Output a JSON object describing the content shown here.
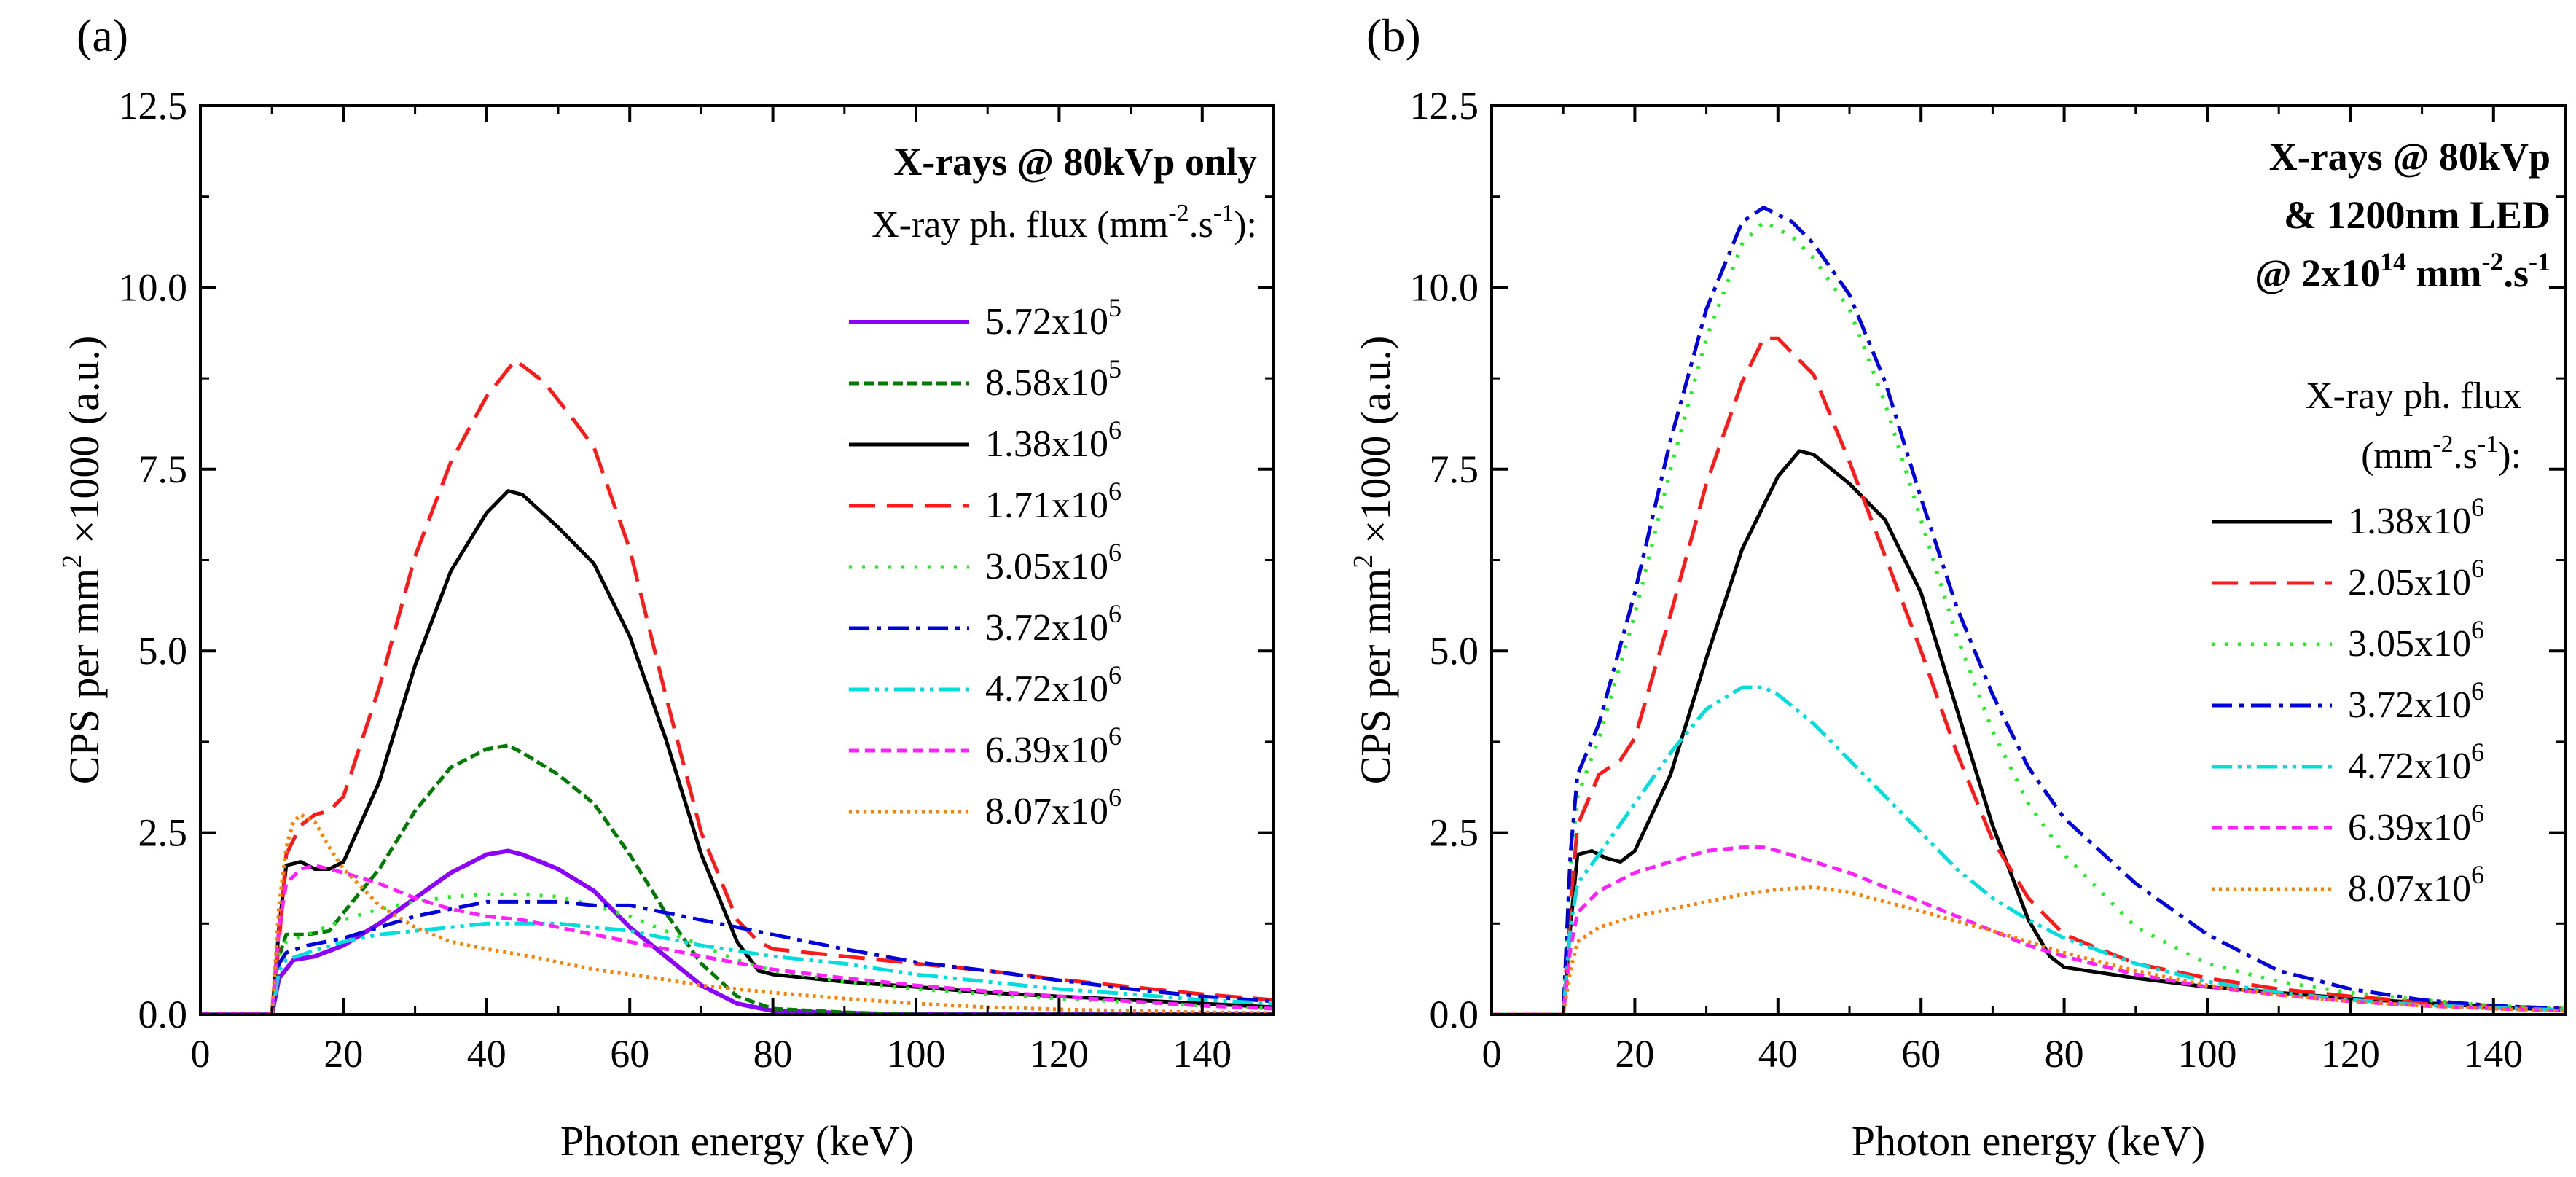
{
  "chart_data": [
    {
      "type": "line",
      "panel_label": "(a)",
      "xlabel": "Photon energy (keV)",
      "ylabel": "CPS per mm",
      "ylabel_sup": "2",
      "ylabel_tail": " ×1000 (a.u.)",
      "xlim": [
        0,
        150
      ],
      "ylim": [
        0,
        12.5
      ],
      "xticks": [
        "0",
        "20",
        "40",
        "60",
        "80",
        "100",
        "120",
        "140"
      ],
      "yticks": [
        "0.0",
        "2.5",
        "5.0",
        "7.5",
        "10.0",
        "12.5"
      ],
      "xtick_values": [
        0,
        20,
        40,
        60,
        80,
        100,
        120,
        140
      ],
      "ytick_values": [
        0,
        2.5,
        5.0,
        7.5,
        10.0,
        12.5
      ],
      "legend": {
        "title_lines": [
          "X-rays @ 80kVp only"
        ],
        "subtitle": "X-ray ph. flux (mm",
        "subtitle_sup": "-2",
        "subtitle_mid": ".s",
        "subtitle_sup2": "-1",
        "subtitle_tail": "):"
      },
      "series": [
        {
          "mant": "5.72x10",
          "exp": "5",
          "color": "#8B00FF",
          "dash": "solid",
          "width": 6,
          "x": [
            0,
            10,
            11,
            13,
            16,
            20,
            25,
            30,
            35,
            40,
            43,
            45,
            50,
            55,
            60,
            65,
            70,
            75,
            80,
            90,
            100,
            150
          ],
          "y": [
            0,
            0,
            0.5,
            0.75,
            0.8,
            0.95,
            1.25,
            1.6,
            1.95,
            2.2,
            2.25,
            2.2,
            2.0,
            1.7,
            1.2,
            0.8,
            0.4,
            0.15,
            0.05,
            0.02,
            0,
            0
          ]
        },
        {
          "mant": "8.58x10",
          "exp": "5",
          "color": "#007A00",
          "dash": "14,6",
          "width": 5,
          "x": [
            0,
            10,
            11,
            12,
            15,
            18,
            20,
            25,
            30,
            35,
            40,
            43,
            45,
            50,
            55,
            60,
            65,
            70,
            75,
            80,
            90,
            100,
            150
          ],
          "y": [
            0,
            0,
            0.8,
            1.1,
            1.1,
            1.15,
            1.4,
            2.0,
            2.8,
            3.4,
            3.65,
            3.7,
            3.6,
            3.3,
            2.9,
            2.2,
            1.4,
            0.7,
            0.25,
            0.08,
            0.03,
            0,
            0
          ]
        },
        {
          "mant": "1.38x10",
          "exp": "6",
          "color": "#000000",
          "dash": "solid",
          "width": 5,
          "x": [
            0,
            10,
            11,
            12,
            14,
            16,
            18,
            20,
            25,
            30,
            35,
            40,
            43,
            45,
            50,
            55,
            60,
            65,
            70,
            75,
            78,
            80,
            90,
            100,
            110,
            120,
            130,
            140,
            150
          ],
          "y": [
            0,
            0,
            1.2,
            2.05,
            2.1,
            2.0,
            2.0,
            2.1,
            3.2,
            4.8,
            6.1,
            6.9,
            7.2,
            7.15,
            6.7,
            6.2,
            5.2,
            3.8,
            2.2,
            1.0,
            0.6,
            0.55,
            0.45,
            0.38,
            0.3,
            0.25,
            0.2,
            0.15,
            0.1
          ]
        },
        {
          "mant": "1.71x10",
          "exp": "6",
          "color": "#FF1A1A",
          "dash": "36,16",
          "width": 5,
          "x": [
            0,
            10,
            11,
            12,
            14,
            16,
            18,
            20,
            25,
            30,
            35,
            40,
            44,
            48,
            52,
            55,
            60,
            65,
            70,
            75,
            78,
            80,
            90,
            100,
            110,
            120,
            130,
            140,
            150
          ],
          "y": [
            0,
            0,
            1.0,
            2.2,
            2.6,
            2.75,
            2.8,
            3.0,
            4.5,
            6.3,
            7.6,
            8.5,
            9.0,
            8.7,
            8.2,
            7.8,
            6.4,
            4.4,
            2.5,
            1.3,
            1.0,
            0.9,
            0.8,
            0.7,
            0.6,
            0.48,
            0.38,
            0.28,
            0.2
          ]
        },
        {
          "mant": "3.05x10",
          "exp": "6",
          "color": "#22EE22",
          "dash": "4,14",
          "width": 5,
          "x": [
            0,
            10,
            11,
            12,
            15,
            20,
            25,
            30,
            35,
            40,
            45,
            50,
            55,
            60,
            65,
            70,
            75,
            80,
            90,
            100,
            110,
            120,
            130,
            140,
            150
          ],
          "y": [
            0,
            0,
            0.8,
            1.0,
            1.1,
            1.3,
            1.45,
            1.55,
            1.62,
            1.65,
            1.65,
            1.62,
            1.5,
            1.35,
            1.15,
            0.95,
            0.75,
            0.6,
            0.45,
            0.35,
            0.28,
            0.22,
            0.17,
            0.12,
            0.08
          ]
        },
        {
          "mant": "3.72x10",
          "exp": "6",
          "color": "#0000DD",
          "dash": "28,10,6,10",
          "width": 5,
          "x": [
            0,
            10,
            11,
            12,
            15,
            20,
            25,
            30,
            35,
            40,
            45,
            50,
            55,
            60,
            65,
            70,
            80,
            90,
            100,
            110,
            120,
            130,
            140,
            150
          ],
          "y": [
            0,
            0,
            0.7,
            0.85,
            0.95,
            1.05,
            1.2,
            1.35,
            1.45,
            1.55,
            1.55,
            1.55,
            1.5,
            1.5,
            1.4,
            1.3,
            1.1,
            0.9,
            0.72,
            0.6,
            0.47,
            0.35,
            0.25,
            0.18
          ]
        },
        {
          "mant": "4.72x10",
          "exp": "6",
          "color": "#00DDDD",
          "dash": "28,8,5,8,5,8",
          "width": 5,
          "x": [
            0,
            10,
            11,
            12,
            15,
            20,
            25,
            30,
            35,
            40,
            45,
            50,
            55,
            60,
            65,
            70,
            80,
            90,
            100,
            110,
            120,
            130,
            140,
            150
          ],
          "y": [
            0,
            0,
            0.6,
            0.75,
            0.85,
            1.0,
            1.1,
            1.15,
            1.2,
            1.25,
            1.25,
            1.25,
            1.2,
            1.15,
            1.05,
            0.95,
            0.8,
            0.7,
            0.55,
            0.45,
            0.35,
            0.28,
            0.2,
            0.15
          ]
        },
        {
          "mant": "6.39x10",
          "exp": "6",
          "color": "#FF22FF",
          "dash": "14,8",
          "width": 5,
          "x": [
            0,
            10,
            11,
            12,
            14,
            16,
            18,
            20,
            25,
            30,
            35,
            40,
            45,
            50,
            55,
            60,
            65,
            70,
            80,
            90,
            100,
            110,
            120,
            130,
            140,
            150
          ],
          "y": [
            0,
            0,
            1.2,
            1.8,
            2.0,
            2.05,
            2.0,
            1.95,
            1.8,
            1.6,
            1.45,
            1.35,
            1.3,
            1.2,
            1.1,
            1.0,
            0.9,
            0.8,
            0.62,
            0.5,
            0.4,
            0.32,
            0.25,
            0.18,
            0.12,
            0.08
          ]
        },
        {
          "mant": "8.07x10",
          "exp": "6",
          "color": "#FF7F00",
          "dash": "4,6",
          "width": 5,
          "x": [
            0,
            10,
            11,
            12,
            13,
            14,
            16,
            18,
            20,
            25,
            30,
            35,
            40,
            45,
            50,
            55,
            60,
            65,
            70,
            80,
            90,
            100,
            110,
            120,
            130,
            140,
            150
          ],
          "y": [
            0,
            0,
            1.5,
            2.3,
            2.65,
            2.75,
            2.65,
            2.3,
            2.0,
            1.5,
            1.2,
            1.0,
            0.9,
            0.82,
            0.72,
            0.62,
            0.55,
            0.48,
            0.4,
            0.3,
            0.22,
            0.15,
            0.1,
            0.07,
            0.05,
            0.03,
            0.02
          ]
        }
      ]
    },
    {
      "type": "line",
      "panel_label": "(b)",
      "xlabel": "Photon energy (keV)",
      "ylabel": "CPS per mm",
      "ylabel_sup": "2",
      "ylabel_tail": " ×1000 (a.u.)",
      "xlim": [
        0,
        150
      ],
      "ylim": [
        0,
        12.5
      ],
      "xticks": [
        "0",
        "20",
        "40",
        "60",
        "80",
        "100",
        "120",
        "140"
      ],
      "yticks": [
        "0.0",
        "2.5",
        "5.0",
        "7.5",
        "10.0",
        "12.5"
      ],
      "xtick_values": [
        0,
        20,
        40,
        60,
        80,
        100,
        120,
        140
      ],
      "ytick_values": [
        0,
        2.5,
        5.0,
        7.5,
        10.0,
        12.5
      ],
      "legend": {
        "title_lines": [
          "X-rays @ 80kVp",
          "& 1200nm LED"
        ],
        "title_line3": "@ 2x10",
        "title_line3_sup": "14",
        "title_line3_mid": " mm",
        "title_line3_sup2": "-2",
        "title_line3_mid2": ".s",
        "title_line3_sup3": "-1",
        "subtitle_lines": [
          "X-ray ph. flux"
        ],
        "subtitle2": "(mm",
        "subtitle2_sup": "-2",
        "subtitle2_mid": ".s",
        "subtitle2_sup2": "-1",
        "subtitle2_tail": "):"
      },
      "series": [
        {
          "mant": "1.38x10",
          "exp": "6",
          "color": "#000000",
          "dash": "solid",
          "width": 5,
          "x": [
            0,
            10,
            11,
            12,
            14,
            16,
            18,
            20,
            25,
            30,
            35,
            40,
            43,
            45,
            50,
            55,
            60,
            65,
            70,
            75,
            78,
            80,
            90,
            100,
            110,
            120,
            130,
            140,
            150
          ],
          "y": [
            0,
            0,
            1.2,
            2.2,
            2.25,
            2.15,
            2.1,
            2.25,
            3.3,
            4.9,
            6.4,
            7.4,
            7.75,
            7.7,
            7.3,
            6.8,
            5.8,
            4.2,
            2.6,
            1.3,
            0.8,
            0.65,
            0.5,
            0.38,
            0.3,
            0.22,
            0.16,
            0.1,
            0.06
          ]
        },
        {
          "mant": "2.05x10",
          "exp": "6",
          "color": "#FF1A1A",
          "dash": "36,16",
          "width": 5,
          "x": [
            0,
            10,
            11,
            12,
            15,
            18,
            20,
            25,
            30,
            35,
            38,
            40,
            42,
            45,
            50,
            55,
            60,
            65,
            70,
            75,
            80,
            90,
            100,
            110,
            120,
            130,
            140,
            150
          ],
          "y": [
            0,
            0,
            1.5,
            2.6,
            3.3,
            3.5,
            3.8,
            5.5,
            7.3,
            8.7,
            9.3,
            9.3,
            9.1,
            8.8,
            7.6,
            6.3,
            5.0,
            3.6,
            2.4,
            1.6,
            1.1,
            0.7,
            0.5,
            0.35,
            0.25,
            0.17,
            0.12,
            0.08
          ]
        },
        {
          "mant": "3.05x10",
          "exp": "6",
          "color": "#22EE22",
          "dash": "4,14",
          "width": 5,
          "x": [
            0,
            10,
            11,
            12,
            15,
            20,
            25,
            30,
            35,
            38,
            40,
            42,
            45,
            50,
            55,
            60,
            65,
            70,
            75,
            80,
            90,
            100,
            110,
            120,
            130,
            140,
            150
          ],
          "y": [
            0,
            0,
            2.0,
            3.0,
            3.8,
            5.5,
            7.5,
            9.3,
            10.6,
            10.9,
            10.8,
            10.7,
            10.4,
            9.7,
            8.4,
            6.8,
            5.2,
            3.9,
            2.9,
            2.2,
            1.2,
            0.7,
            0.45,
            0.3,
            0.2,
            0.12,
            0.08
          ]
        },
        {
          "mant": "3.72x10",
          "exp": "6",
          "color": "#0000DD",
          "dash": "28,10,6,10",
          "width": 5,
          "x": [
            0,
            10,
            11,
            12,
            15,
            20,
            25,
            30,
            35,
            38,
            40,
            42,
            45,
            50,
            55,
            60,
            65,
            70,
            75,
            80,
            90,
            100,
            110,
            120,
            130,
            140,
            150
          ],
          "y": [
            0,
            0,
            2.2,
            3.3,
            4.0,
            5.8,
            7.9,
            9.7,
            10.9,
            11.1,
            11.0,
            10.9,
            10.6,
            9.9,
            8.7,
            7.1,
            5.6,
            4.4,
            3.4,
            2.7,
            1.8,
            1.1,
            0.6,
            0.35,
            0.2,
            0.12,
            0.08
          ]
        },
        {
          "mant": "4.72x10",
          "exp": "6",
          "color": "#00DDDD",
          "dash": "28,8,5,8,5,8",
          "width": 5,
          "x": [
            0,
            10,
            11,
            12,
            15,
            20,
            25,
            30,
            35,
            38,
            40,
            45,
            50,
            55,
            60,
            65,
            70,
            75,
            80,
            90,
            100,
            110,
            120,
            130,
            140,
            150
          ],
          "y": [
            0,
            0,
            1.2,
            1.8,
            2.2,
            2.9,
            3.6,
            4.2,
            4.5,
            4.5,
            4.4,
            4.0,
            3.5,
            3.0,
            2.5,
            2.0,
            1.6,
            1.3,
            1.05,
            0.7,
            0.45,
            0.3,
            0.2,
            0.13,
            0.09,
            0.06
          ]
        },
        {
          "mant": "6.39x10",
          "exp": "6",
          "color": "#FF22FF",
          "dash": "14,8",
          "width": 5,
          "x": [
            0,
            10,
            11,
            12,
            15,
            20,
            25,
            30,
            35,
            38,
            40,
            45,
            50,
            55,
            60,
            65,
            70,
            75,
            80,
            90,
            100,
            110,
            120,
            130,
            140,
            150
          ],
          "y": [
            0,
            0,
            0.9,
            1.4,
            1.7,
            1.95,
            2.1,
            2.25,
            2.3,
            2.3,
            2.25,
            2.1,
            1.95,
            1.75,
            1.55,
            1.35,
            1.15,
            0.95,
            0.8,
            0.55,
            0.38,
            0.27,
            0.18,
            0.12,
            0.08,
            0.05
          ]
        },
        {
          "mant": "8.07x10",
          "exp": "6",
          "color": "#FF7F00",
          "dash": "4,6",
          "width": 5,
          "x": [
            0,
            10,
            11,
            12,
            15,
            20,
            25,
            30,
            35,
            40,
            45,
            50,
            55,
            60,
            65,
            70,
            75,
            80,
            90,
            100,
            110,
            120,
            130,
            140,
            150
          ],
          "y": [
            0,
            0,
            0.6,
            1.0,
            1.2,
            1.35,
            1.45,
            1.55,
            1.65,
            1.72,
            1.75,
            1.68,
            1.55,
            1.42,
            1.28,
            1.15,
            1.0,
            0.85,
            0.6,
            0.4,
            0.27,
            0.18,
            0.12,
            0.08,
            0.05
          ]
        }
      ]
    }
  ]
}
